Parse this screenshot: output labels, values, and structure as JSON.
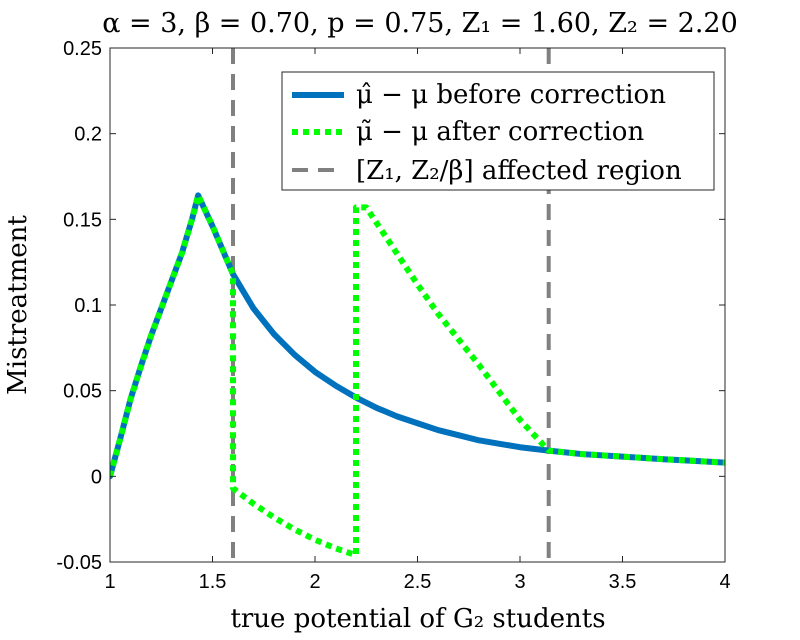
{
  "chart_data": {
    "type": "line",
    "title": "α = 3, β = 0.70, p = 0.75, Z₁ = 1.60, Z₂ = 2.20",
    "xlabel": "true potential of G₂ students",
    "ylabel": "Mistreatment",
    "xlim": [
      1,
      4
    ],
    "ylim": [
      -0.05,
      0.25
    ],
    "xticks": [
      1,
      1.5,
      2,
      2.5,
      3,
      3.5,
      4
    ],
    "xtick_labels": [
      "1",
      "1.5",
      "2",
      "2.5",
      "3",
      "3.5",
      "4"
    ],
    "yticks": [
      -0.05,
      0,
      0.05,
      0.1,
      0.15,
      0.2,
      0.25
    ],
    "ytick_labels": [
      "-0.05",
      "0",
      "0.05",
      "0.1",
      "0.15",
      "0.2",
      "0.25"
    ],
    "grid": false,
    "legend_position": "top-right",
    "series": [
      {
        "name": "μ̂ − μ before correction",
        "style": "solid",
        "color": "#0072bd",
        "points": [
          [
            1.0,
            0.0
          ],
          [
            1.05,
            0.022
          ],
          [
            1.1,
            0.045
          ],
          [
            1.15,
            0.064
          ],
          [
            1.2,
            0.082
          ],
          [
            1.25,
            0.098
          ],
          [
            1.3,
            0.114
          ],
          [
            1.35,
            0.13
          ],
          [
            1.4,
            0.15
          ],
          [
            1.43,
            0.164
          ],
          [
            1.5,
            0.146
          ],
          [
            1.6,
            0.118
          ],
          [
            1.7,
            0.098
          ],
          [
            1.8,
            0.083
          ],
          [
            1.9,
            0.071
          ],
          [
            2.0,
            0.061
          ],
          [
            2.1,
            0.053
          ],
          [
            2.2,
            0.046
          ],
          [
            2.3,
            0.04
          ],
          [
            2.4,
            0.035
          ],
          [
            2.5,
            0.031
          ],
          [
            2.6,
            0.027
          ],
          [
            2.7,
            0.024
          ],
          [
            2.8,
            0.021
          ],
          [
            2.9,
            0.019
          ],
          [
            3.0,
            0.017
          ],
          [
            3.14,
            0.015
          ],
          [
            3.3,
            0.013
          ],
          [
            3.5,
            0.0115
          ],
          [
            3.7,
            0.01
          ],
          [
            3.85,
            0.009
          ],
          [
            4.0,
            0.008
          ]
        ]
      },
      {
        "name": "μ̃ − μ after correction",
        "style": "dotted",
        "color": "#00ff00",
        "points": [
          [
            1.0,
            0.0
          ],
          [
            1.05,
            0.022
          ],
          [
            1.1,
            0.045
          ],
          [
            1.15,
            0.064
          ],
          [
            1.2,
            0.082
          ],
          [
            1.25,
            0.098
          ],
          [
            1.3,
            0.114
          ],
          [
            1.35,
            0.13
          ],
          [
            1.4,
            0.15
          ],
          [
            1.43,
            0.164
          ],
          [
            1.5,
            0.146
          ],
          [
            1.6,
            0.118
          ],
          [
            1.6,
            -0.007
          ],
          [
            1.7,
            -0.016
          ],
          [
            1.8,
            -0.024
          ],
          [
            1.9,
            -0.031
          ],
          [
            2.0,
            -0.037
          ],
          [
            2.1,
            -0.042
          ],
          [
            2.2,
            -0.046
          ],
          [
            2.2,
            0.157
          ],
          [
            2.25,
            0.157
          ],
          [
            2.3,
            0.148
          ],
          [
            2.4,
            0.13
          ],
          [
            2.5,
            0.112
          ],
          [
            2.6,
            0.095
          ],
          [
            2.7,
            0.08
          ],
          [
            2.8,
            0.065
          ],
          [
            2.9,
            0.049
          ],
          [
            3.0,
            0.033
          ],
          [
            3.14,
            0.015
          ],
          [
            3.3,
            0.013
          ],
          [
            3.5,
            0.0115
          ],
          [
            3.7,
            0.01
          ],
          [
            3.85,
            0.009
          ],
          [
            4.0,
            0.008
          ]
        ]
      },
      {
        "name": "[Z₁, Z₂/β] affected region",
        "style": "dashed",
        "color": "#808080",
        "vlines": [
          1.6,
          3.14
        ]
      }
    ]
  }
}
